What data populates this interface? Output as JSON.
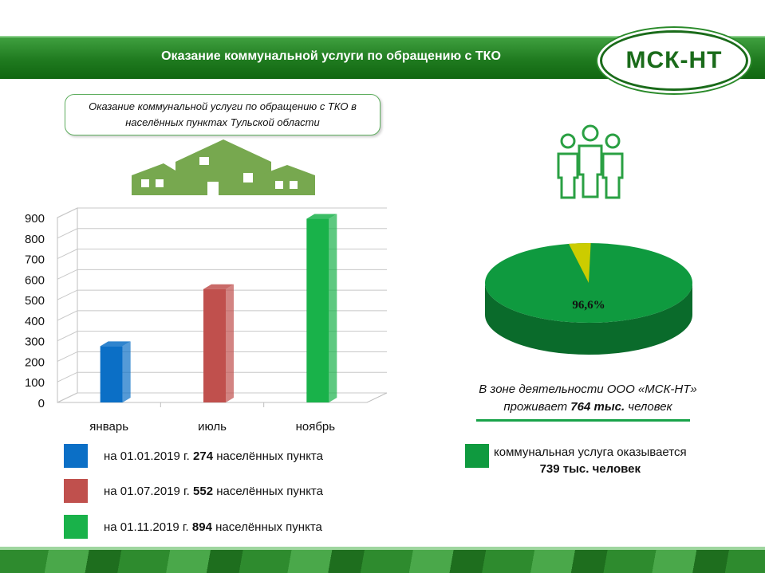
{
  "header": {
    "title": "Оказание коммунальной  услуги по обращению с ТКО",
    "logo_text": "МСК-НТ"
  },
  "callout": {
    "text": "Оказание коммунальной услуги по обращению с ТКО в населённых пунктах Тульской области"
  },
  "chart_data": [
    {
      "type": "bar",
      "categories": [
        "январь",
        "июль",
        "ноябрь"
      ],
      "values": [
        274,
        552,
        894
      ],
      "colors": [
        "#0b6fc6",
        "#c0504d",
        "#19b24a"
      ],
      "ylim": [
        0,
        900
      ],
      "yticks": [
        0,
        100,
        200,
        300,
        400,
        500,
        600,
        700,
        800,
        900
      ],
      "grid": true
    },
    {
      "type": "pie",
      "values": [
        96.6,
        3.4
      ],
      "colors": [
        "#0f9a3f",
        "#cccc00"
      ],
      "label": "96,6%"
    }
  ],
  "pie_caption": {
    "line1": "В зоне деятельности ООО «МСК-НТ»",
    "line2_pre": "проживает ",
    "line2_bold": "764 тыс.",
    "line2_post": " человек"
  },
  "legend": [
    {
      "color": "#0b6fc6",
      "pre": "на 01.01.2019 г. ",
      "bold": "274",
      "post": " населённых пункта"
    },
    {
      "color": "#c0504d",
      "pre": "на 01.07.2019 г. ",
      "bold": "552",
      "post": " населённых пункта"
    },
    {
      "color": "#19b24a",
      "pre": "на 01.11.2019 г. ",
      "bold": "894",
      "post": " населённых пункта"
    }
  ],
  "pie_legend": {
    "color": "#0f9a3f",
    "text": "коммунальная услуга оказывается",
    "bold": "739 тыс. человек"
  },
  "icons": {
    "houses": "houses-icon",
    "people": "people-icon"
  }
}
